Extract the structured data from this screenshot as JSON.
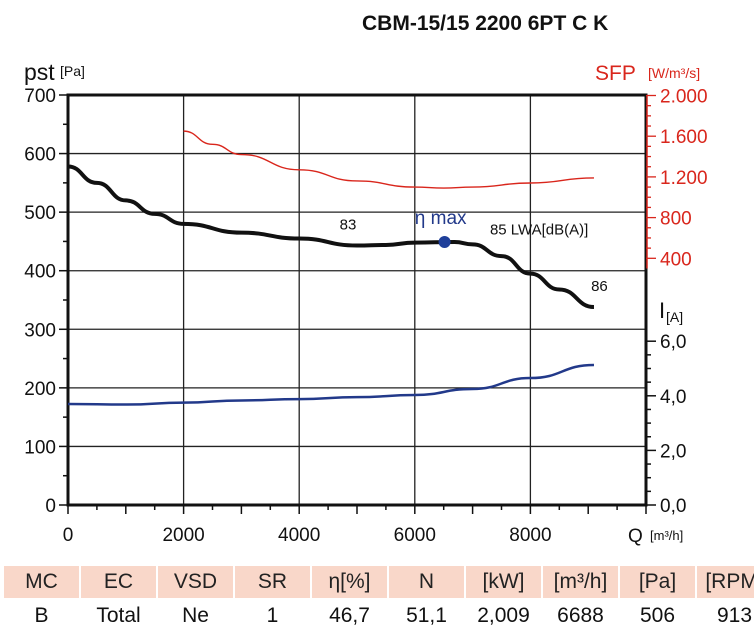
{
  "chart_data": {
    "type": "line",
    "title": "CBM-15/15 2200 6PT C K",
    "xlabel": "Q",
    "xunit": "[m³/h]",
    "ylabel": "pst",
    "yunit": "[Pa]",
    "y2label": "SFP",
    "y2unit": "[W/m³/s]",
    "y3label": "I",
    "y3unit": "[A]",
    "xlim": [
      0,
      10000
    ],
    "ylim": [
      0,
      700
    ],
    "y2lim": [
      0,
      2000
    ],
    "y3lim": [
      0,
      7.5
    ],
    "xticks": [
      "0",
      "2000",
      "4000",
      "6000",
      "8000"
    ],
    "yticks": [
      "0",
      "100",
      "200",
      "300",
      "400",
      "500",
      "600",
      "700"
    ],
    "y2ticks": [
      "400",
      "800",
      "1.200",
      "1.600",
      "2.000"
    ],
    "y3ticks": [
      "0,0",
      "2,0",
      "4,0",
      "6,0"
    ],
    "grid": true,
    "colors": {
      "pressure": "#111111",
      "sfp": "#d9261c",
      "current": "#22398a",
      "header": "#f9d7c9"
    },
    "series": [
      {
        "name": "pressure",
        "axis": "y",
        "x": [
          0,
          500,
          1000,
          1500,
          2000,
          3000,
          4000,
          5000,
          5500,
          6000,
          6688,
          7000,
          7500,
          8000,
          8500,
          9100
        ],
        "y": [
          578,
          550,
          520,
          497,
          480,
          465,
          455,
          443,
          444,
          448,
          449,
          445,
          425,
          395,
          368,
          338
        ]
      },
      {
        "name": "SFP",
        "axis": "y2",
        "x": [
          2000,
          2500,
          3000,
          4000,
          5000,
          6000,
          6500,
          7000,
          8000,
          9100
        ],
        "y": [
          1650,
          1520,
          1420,
          1270,
          1160,
          1100,
          1090,
          1100,
          1140,
          1190
        ]
      },
      {
        "name": "current",
        "axis": "y3",
        "x": [
          0,
          1000,
          2000,
          3000,
          4000,
          5000,
          6000,
          7000,
          8000,
          9100
        ],
        "y": [
          3.7,
          3.68,
          3.75,
          3.83,
          3.88,
          3.95,
          4.03,
          4.25,
          4.65,
          5.13
        ]
      }
    ],
    "annotations": [
      {
        "text": "83",
        "x": 4700,
        "y": 470
      },
      {
        "text": "η max",
        "x": 6000,
        "y": 480
      },
      {
        "text": "85 LWA[dB(A)]",
        "x": 7300,
        "y": 462
      },
      {
        "text": "86",
        "x": 9050,
        "y": 365
      }
    ],
    "eta_max_point": {
      "x": 6688,
      "y": 449
    }
  },
  "table": {
    "headers": [
      "MC",
      "EC",
      "VSD",
      "SR",
      "η[%]",
      "N",
      "[kW]",
      "[m³/h]",
      "[Pa]",
      "[RPM]"
    ],
    "values": [
      "B",
      "Total",
      "Ne",
      "1",
      "46,7",
      "51,1",
      "2,009",
      "6688",
      "506",
      "913"
    ]
  }
}
